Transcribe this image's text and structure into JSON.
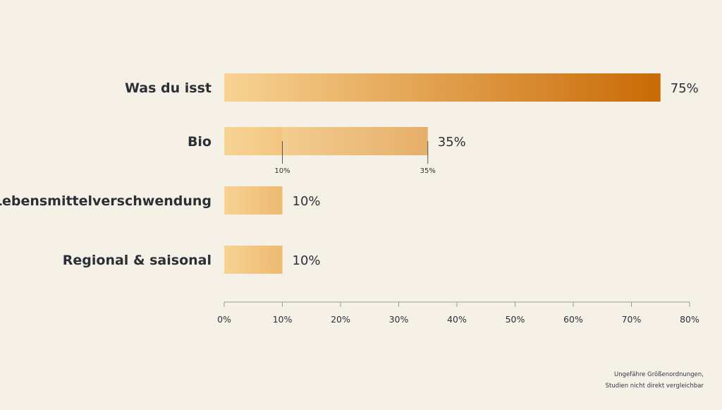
{
  "chart_data": {
    "type": "bar",
    "orientation": "horizontal",
    "categories": [
      "Was du isst",
      "Bio",
      "Lebensmittelverschwendung",
      "Regional & saisonal"
    ],
    "values": [
      75,
      35,
      10,
      10
    ],
    "value_labels": [
      "75%",
      "35%",
      "10%",
      "10%"
    ],
    "ranges": [
      {
        "category": "Bio",
        "low": 10,
        "high": 35,
        "low_label": "10%",
        "high_label": "35%"
      }
    ],
    "xlim": [
      0,
      80
    ],
    "xticks": [
      0,
      10,
      20,
      30,
      40,
      50,
      60,
      70,
      80
    ],
    "xtick_labels": [
      "0%",
      "10%",
      "20%",
      "30%",
      "40%",
      "50%",
      "60%",
      "70%",
      "80%"
    ],
    "title": "",
    "xlabel": "",
    "ylabel": "",
    "grid": false,
    "legend": false,
    "colors": {
      "bar_light": "#f8d394",
      "bar_dark": "#c96a05",
      "background": "#f6f1e7",
      "text": "#2b2f36",
      "axis": "#9a9a9a"
    }
  },
  "footnote": {
    "line1": "Ungefähre Größenordnungen,",
    "line2": "Studien nicht direkt vergleichbar"
  }
}
